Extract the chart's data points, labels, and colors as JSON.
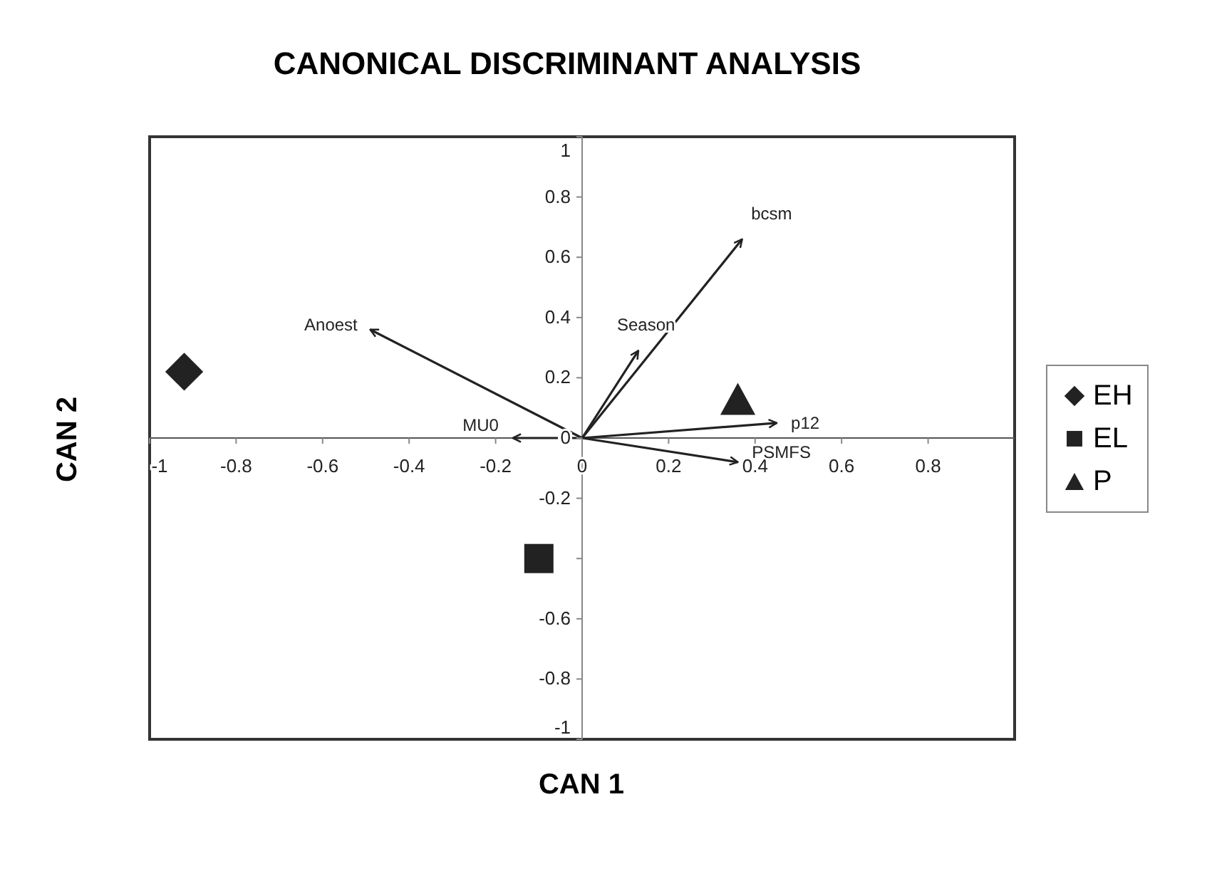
{
  "chart_data": {
    "type": "scatter",
    "title": "CANONICAL DISCRIMINANT ANALYSIS",
    "xlabel": "CAN 1",
    "ylabel": "CAN 2",
    "xlim": [
      -1,
      1
    ],
    "ylim": [
      -1,
      1
    ],
    "xticks": [
      -1,
      -0.8,
      -0.6,
      -0.4,
      -0.2,
      0,
      0.2,
      0.4,
      0.6,
      0.8
    ],
    "yticks": [
      -1,
      -0.8,
      -0.6,
      {
        "value": -0.4,
        "label": null
      },
      -0.2,
      0,
      0.2,
      0.4,
      0.6,
      0.8,
      1
    ],
    "legend": "right",
    "series": [
      {
        "name": "EH",
        "marker": "diamond",
        "color": "#222222",
        "x": [
          -0.92
        ],
        "values": [
          0.22
        ]
      },
      {
        "name": "EL",
        "marker": "square",
        "color": "#222222",
        "x": [
          -0.1
        ],
        "values": [
          -0.4
        ]
      },
      {
        "name": "P",
        "marker": "triangle",
        "color": "#222222",
        "x": [
          0.36
        ],
        "values": [
          0.13
        ]
      },
      {
        "name": "Anoest",
        "type": "line",
        "marker": "none",
        "color": "#222222",
        "x": [
          0,
          -0.49
        ],
        "values": [
          0,
          0.36
        ]
      },
      {
        "name": "MU0",
        "type": "line",
        "marker": "none",
        "color": "#222222",
        "x": [
          0,
          -0.16
        ],
        "values": [
          0,
          0
        ]
      },
      {
        "name": "bcsm",
        "type": "line",
        "marker": "none",
        "color": "#222222",
        "x": [
          0,
          0.37
        ],
        "values": [
          0,
          0.66
        ]
      },
      {
        "name": "Season",
        "type": "line",
        "marker": "none",
        "color": "#222222",
        "x": [
          0,
          0.13
        ],
        "values": [
          0,
          0.29
        ]
      },
      {
        "name": "p12",
        "type": "line",
        "marker": "none",
        "color": "#222222",
        "x": [
          0,
          0.45
        ],
        "values": [
          0,
          0.05
        ]
      },
      {
        "name": "PSMFS",
        "type": "line",
        "marker": "none",
        "color": "#222222",
        "x": [
          0,
          0.36
        ],
        "values": [
          0,
          -0.08
        ]
      }
    ]
  }
}
